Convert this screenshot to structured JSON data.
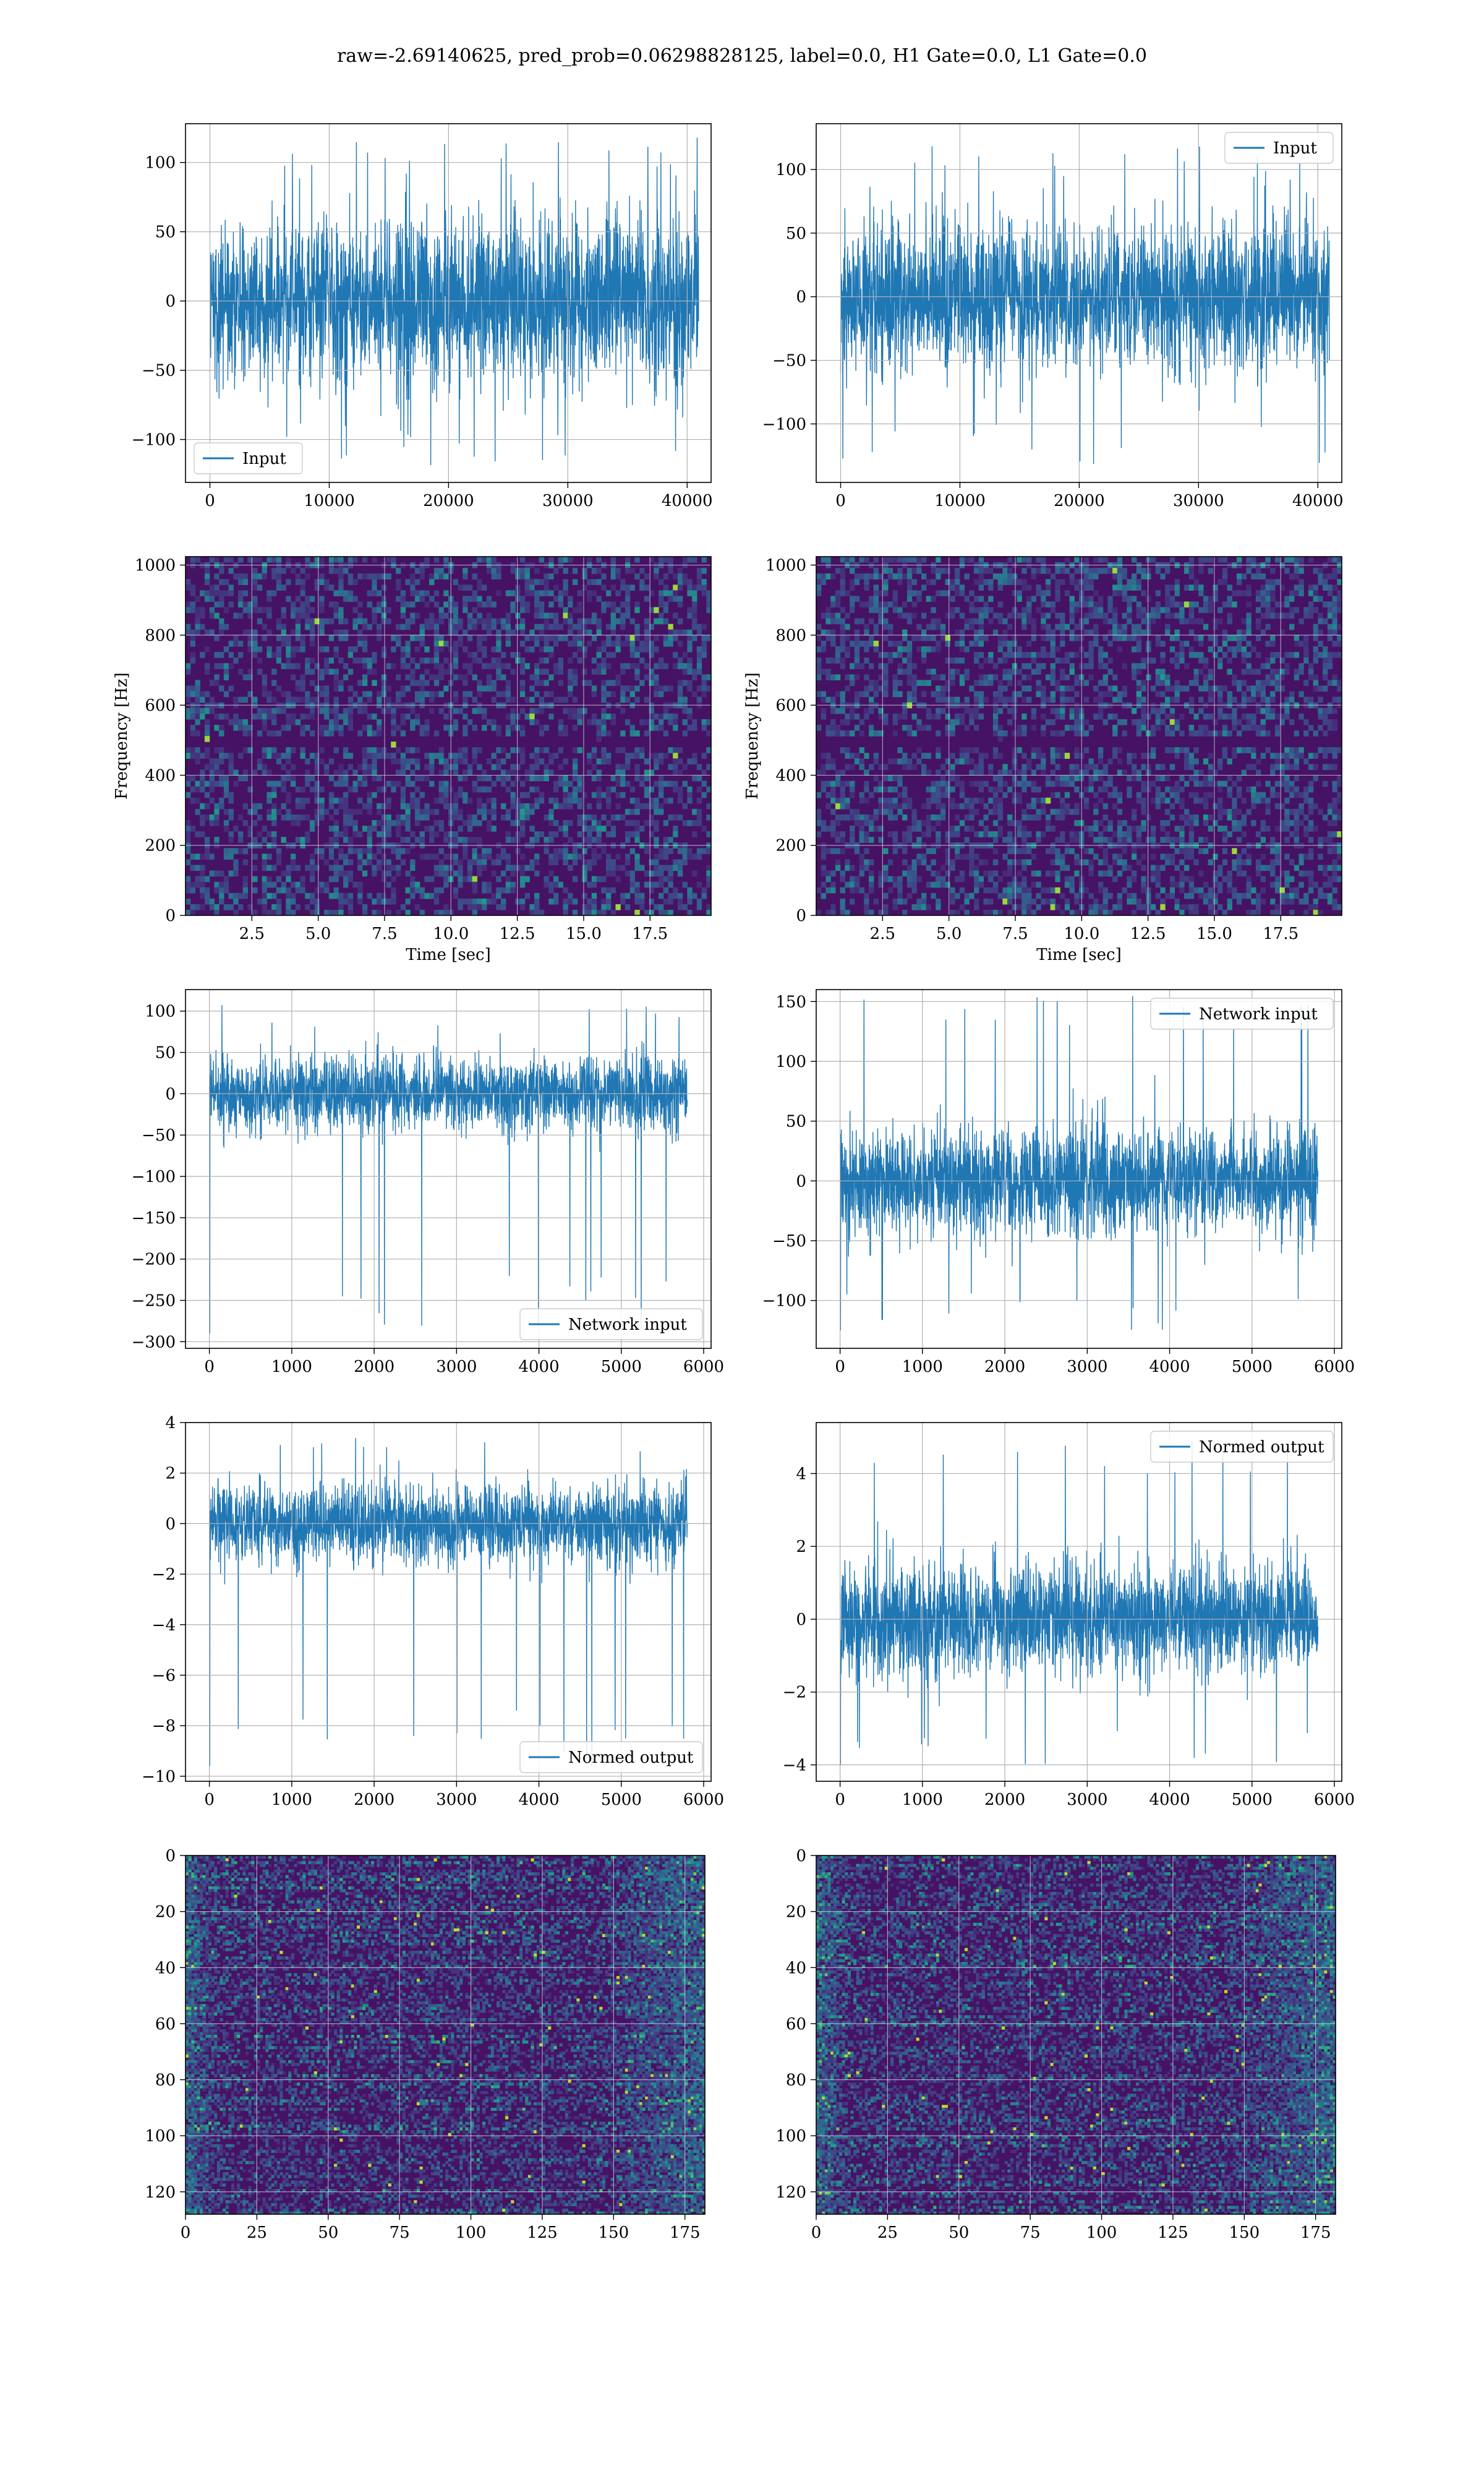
{
  "figure": {
    "suptitle": "raw=-2.69140625, pred_prob=0.06298828125, label=0.0, H1 Gate=0.0, L1 Gate=0.0"
  },
  "chart_data": [
    {
      "id": "input_h1",
      "type": "line",
      "series": [
        {
          "name": "Input",
          "color": "#1f77b4",
          "n_samples": 40960,
          "mean": 0,
          "spread": 28,
          "peak_max": 118,
          "peak_min": -120
        }
      ],
      "xlim": [
        -2048,
        42008
      ],
      "ylim": [
        -131,
        128
      ],
      "xticks": [
        0,
        10000,
        20000,
        30000,
        40000
      ],
      "yticks": [
        -100,
        -50,
        0,
        50,
        100
      ],
      "xticklabels": [
        "0",
        "10000",
        "20000",
        "30000",
        "40000"
      ],
      "yticklabels": [
        "−100",
        "−50",
        "0",
        "50",
        "100"
      ],
      "legend": "lower-left",
      "grid": true
    },
    {
      "id": "input_l1",
      "type": "line",
      "series": [
        {
          "name": "Input",
          "color": "#1f77b4",
          "n_samples": 40960,
          "mean": 0,
          "spread": 28,
          "peak_max": 122,
          "peak_min": -132
        }
      ],
      "xlim": [
        -2048,
        42008
      ],
      "ylim": [
        -146,
        136
      ],
      "xticks": [
        0,
        10000,
        20000,
        30000,
        40000
      ],
      "yticks": [
        -100,
        -50,
        0,
        50,
        100
      ],
      "xticklabels": [
        "0",
        "10000",
        "20000",
        "30000",
        "40000"
      ],
      "yticklabels": [
        "−100",
        "−50",
        "0",
        "50",
        "100"
      ],
      "legend": "upper-right",
      "grid": true
    },
    {
      "id": "spec_h1",
      "type": "heatmap",
      "colormap": "viridis",
      "xlim": [
        0,
        19.8
      ],
      "ylim": [
        0,
        1024
      ],
      "xticks": [
        2.5,
        5.0,
        7.5,
        10.0,
        12.5,
        15.0,
        17.5
      ],
      "yticks": [
        0,
        200,
        400,
        600,
        800,
        1000
      ],
      "xticklabels": [
        "2.5",
        "5.0",
        "7.5",
        "10.0",
        "12.5",
        "15.0",
        "17.5"
      ],
      "yticklabels": [
        "0",
        "200",
        "400",
        "600",
        "800",
        "1000"
      ],
      "xlabel": "Time [sec]",
      "ylabel": "Frequency [Hz]",
      "grid": true
    },
    {
      "id": "spec_l1",
      "type": "heatmap",
      "colormap": "viridis",
      "xlim": [
        0,
        19.8
      ],
      "ylim": [
        0,
        1024
      ],
      "xticks": [
        2.5,
        5.0,
        7.5,
        10.0,
        12.5,
        15.0,
        17.5
      ],
      "yticks": [
        0,
        200,
        400,
        600,
        800,
        1000
      ],
      "xticklabels": [
        "2.5",
        "5.0",
        "7.5",
        "10.0",
        "12.5",
        "15.0",
        "17.5"
      ],
      "yticklabels": [
        "0",
        "200",
        "400",
        "600",
        "800",
        "1000"
      ],
      "xlabel": "Time [sec]",
      "ylabel": "Frequency [Hz]",
      "grid": true
    },
    {
      "id": "net_h1",
      "type": "line",
      "series": [
        {
          "name": "Network input",
          "color": "#1f77b4",
          "n_samples": 5800,
          "mean": 0,
          "spread": 22,
          "peak_max": 108,
          "peak_min": -290
        }
      ],
      "xlim": [
        -290,
        6090
      ],
      "ylim": [
        -308,
        126
      ],
      "xticks": [
        0,
        1000,
        2000,
        3000,
        4000,
        5000,
        6000
      ],
      "yticks": [
        -300,
        -250,
        -200,
        -150,
        -100,
        -50,
        0,
        50,
        100
      ],
      "xticklabels": [
        "0",
        "1000",
        "2000",
        "3000",
        "4000",
        "5000",
        "6000"
      ],
      "yticklabels": [
        "−300",
        "−250",
        "−200",
        "−150",
        "−100",
        "−50",
        "0",
        "50",
        "100"
      ],
      "legend": "lower-right",
      "grid": true
    },
    {
      "id": "net_l1",
      "type": "line",
      "series": [
        {
          "name": "Network input",
          "color": "#1f77b4",
          "n_samples": 5800,
          "mean": 0,
          "spread": 22,
          "peak_max": 155,
          "peak_min": -125
        }
      ],
      "xlim": [
        -290,
        6090
      ],
      "ylim": [
        -140,
        160
      ],
      "xticks": [
        0,
        1000,
        2000,
        3000,
        4000,
        5000,
        6000
      ],
      "yticks": [
        -100,
        -50,
        0,
        50,
        100,
        150
      ],
      "xticklabels": [
        "0",
        "1000",
        "2000",
        "3000",
        "4000",
        "5000",
        "6000"
      ],
      "yticklabels": [
        "−100",
        "−50",
        "0",
        "50",
        "100",
        "150"
      ],
      "legend": "upper-right",
      "grid": true
    },
    {
      "id": "norm_h1",
      "type": "line",
      "series": [
        {
          "name": "Normed output",
          "color": "#1f77b4",
          "n_samples": 5800,
          "mean": 0,
          "spread": 0.75,
          "peak_max": 3.4,
          "peak_min": -9.6
        }
      ],
      "xlim": [
        -290,
        6090
      ],
      "ylim": [
        -10.2,
        4.0
      ],
      "xticks": [
        0,
        1000,
        2000,
        3000,
        4000,
        5000,
        6000
      ],
      "yticks": [
        -10,
        -8,
        -6,
        -4,
        -2,
        0,
        2,
        4
      ],
      "xticklabels": [
        "0",
        "1000",
        "2000",
        "3000",
        "4000",
        "5000",
        "6000"
      ],
      "yticklabels": [
        "−10",
        "−8",
        "−6",
        "−4",
        "−2",
        "0",
        "2",
        "4"
      ],
      "legend": "lower-right",
      "grid": true
    },
    {
      "id": "norm_l1",
      "type": "line",
      "series": [
        {
          "name": "Normed output",
          "color": "#1f77b4",
          "n_samples": 5800,
          "mean": 0,
          "spread": 0.75,
          "peak_max": 5.0,
          "peak_min": -4.0
        }
      ],
      "xlim": [
        -290,
        6090
      ],
      "ylim": [
        -4.45,
        5.4
      ],
      "xticks": [
        0,
        1000,
        2000,
        3000,
        4000,
        5000,
        6000
      ],
      "yticks": [
        -4,
        -2,
        0,
        2,
        4
      ],
      "xticklabels": [
        "0",
        "1000",
        "2000",
        "3000",
        "4000",
        "5000",
        "6000"
      ],
      "yticklabels": [
        "−4",
        "−2",
        "0",
        "2",
        "4"
      ],
      "legend": "upper-right",
      "grid": true
    },
    {
      "id": "feat_h1",
      "type": "heatmap",
      "colormap": "viridis",
      "xlim": [
        0,
        182
      ],
      "ylim": [
        128,
        0
      ],
      "xticks": [
        0,
        25,
        50,
        75,
        100,
        125,
        150,
        175
      ],
      "yticks": [
        0,
        20,
        40,
        60,
        80,
        100,
        120
      ],
      "xticklabels": [
        "0",
        "25",
        "50",
        "75",
        "100",
        "125",
        "150",
        "175"
      ],
      "yticklabels": [
        "0",
        "20",
        "40",
        "60",
        "80",
        "100",
        "120"
      ],
      "grid": true
    },
    {
      "id": "feat_l1",
      "type": "heatmap",
      "colormap": "viridis",
      "xlim": [
        0,
        182
      ],
      "ylim": [
        128,
        0
      ],
      "xticks": [
        0,
        25,
        50,
        75,
        100,
        125,
        150,
        175
      ],
      "yticks": [
        0,
        20,
        40,
        60,
        80,
        100,
        120
      ],
      "xticklabels": [
        "0",
        "25",
        "50",
        "75",
        "100",
        "125",
        "150",
        "175"
      ],
      "yticklabels": [
        "0",
        "20",
        "40",
        "60",
        "80",
        "100",
        "120"
      ],
      "grid": true
    }
  ]
}
